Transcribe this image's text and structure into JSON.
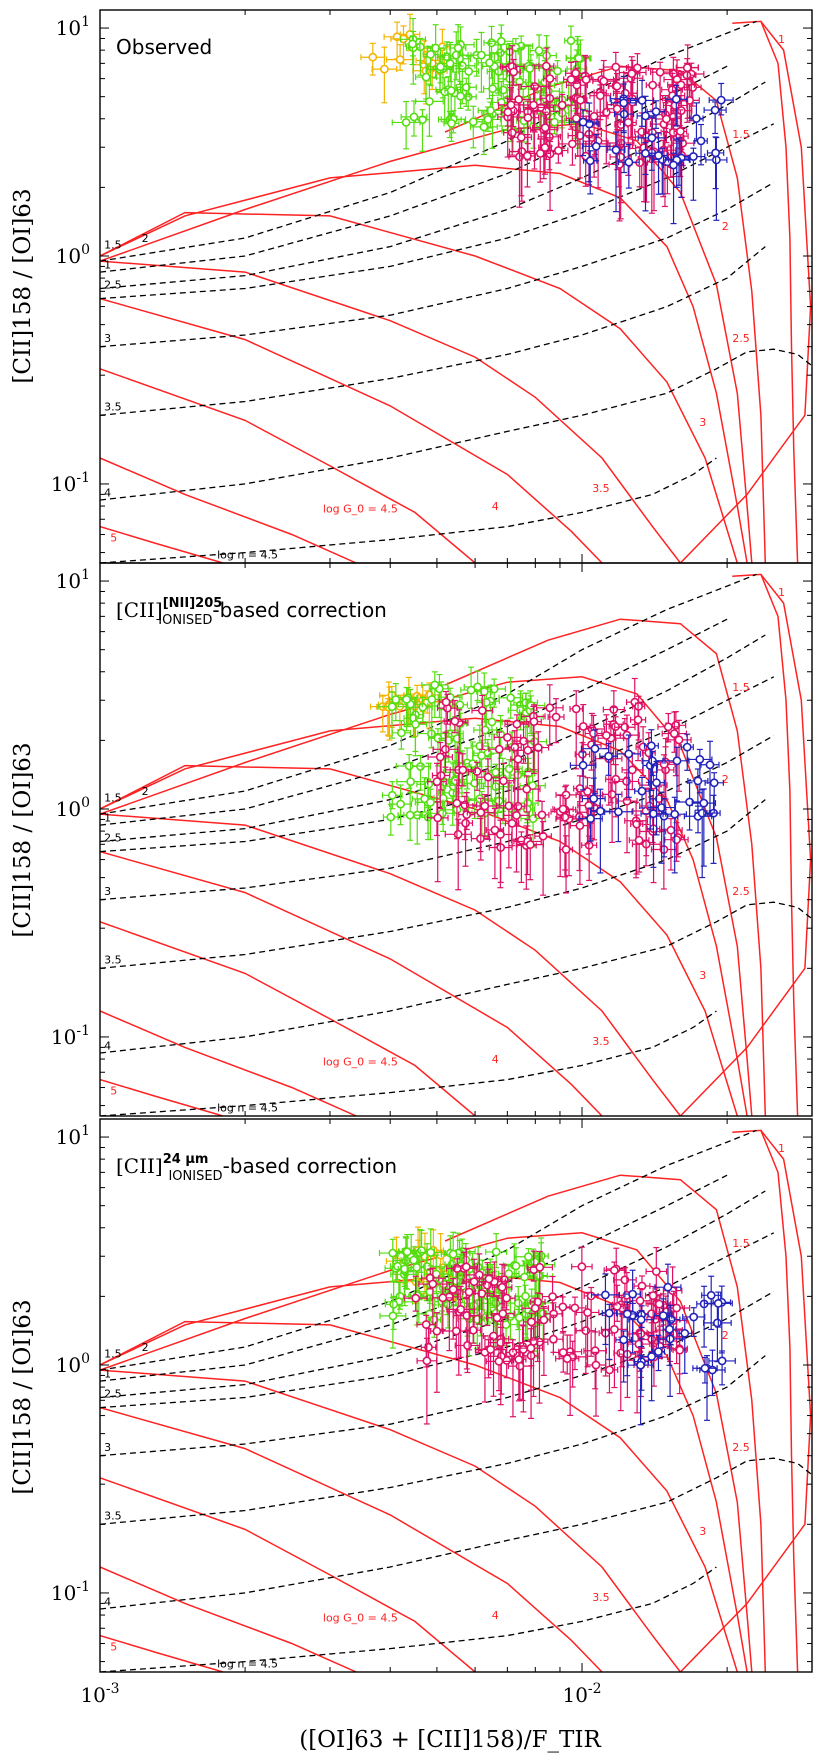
{
  "figure": {
    "xlabel": "([OI]63 + [CII]158)/F_TIR",
    "ylabel": "[CII]158 / [OI]63",
    "x_tick_labels": [
      "10^-3",
      "10^-2"
    ],
    "y_tick_labels": [
      "10^-1",
      "10^0",
      "10^1"
    ]
  },
  "colors": {
    "model_G0": "#ff2222",
    "model_n": "#000000",
    "group1": "#f4b400",
    "group2": "#55dd11",
    "group3": "#dd1166",
    "group4": "#2222bb"
  },
  "chart_data": [
    {
      "type": "scatter",
      "title": "Observed",
      "xscale": "log",
      "yscale": "log",
      "xlim": [
        0.001,
        0.03
      ],
      "ylim": [
        0.045,
        12
      ],
      "grid": false,
      "model_labels": {
        "G0": [
          "1",
          "1.5",
          "2",
          "2.5",
          "3",
          "3.5",
          "4",
          "log G_0 = 4.5",
          "5"
        ],
        "n": [
          "1.5",
          "2",
          "1",
          "2.5",
          "3",
          "3.5",
          "4",
          "log n = 4.5"
        ]
      },
      "series": [
        {
          "x_range": [
            0.0035,
            0.0055
          ],
          "y_range": [
            6.0,
            9.5
          ]
        },
        {
          "x_range": [
            0.0043,
            0.01
          ],
          "y_range": [
            3.5,
            9.0
          ]
        },
        {
          "x_range": [
            0.007,
            0.017
          ],
          "y_range": [
            2.5,
            7.0
          ]
        },
        {
          "x_range": [
            0.01,
            0.02
          ],
          "y_range": [
            2.5,
            5.0
          ]
        }
      ]
    },
    {
      "type": "scatter",
      "title_main": "[CII]",
      "title_sup": "[NII]205",
      "title_sub": "IONISED",
      "title_tail": "-based correction",
      "xscale": "log",
      "yscale": "log",
      "xlim": [
        0.001,
        0.03
      ],
      "ylim": [
        0.045,
        12
      ],
      "grid": false,
      "model_labels": {
        "G0": [
          "1",
          "1.5",
          "2",
          "2.5",
          "3",
          "3.5",
          "4",
          "log G_0 = 4.5",
          "5"
        ],
        "n": [
          "1.5",
          "2",
          "1",
          "2.5",
          "3",
          "3.5",
          "4",
          "log n = 4.5"
        ]
      },
      "series": [
        {
          "x_range": [
            0.0038,
            0.005
          ],
          "y_range": [
            2.8,
            3.2
          ]
        },
        {
          "x_range": [
            0.004,
            0.008
          ],
          "y_range": [
            0.9,
            3.6
          ]
        },
        {
          "x_range": [
            0.005,
            0.016
          ],
          "y_range": [
            0.65,
            3.0
          ]
        },
        {
          "x_range": [
            0.01,
            0.019
          ],
          "y_range": [
            0.9,
            1.9
          ]
        }
      ]
    },
    {
      "type": "scatter",
      "title_main": "[CII]",
      "title_sup": "24 μm",
      "title_sub": "IONISED",
      "title_tail": "-based correction",
      "xscale": "log",
      "yscale": "log",
      "xlim": [
        0.001,
        0.03
      ],
      "ylim": [
        0.045,
        12
      ],
      "grid": false,
      "model_labels": {
        "G0": [
          "1",
          "1.5",
          "2",
          "2.5",
          "3",
          "3.5",
          "4",
          "log G_0 = 4.5",
          "5"
        ],
        "n": [
          "1.5",
          "2",
          "1",
          "2.5",
          "3",
          "3.5",
          "4",
          "log n = 4.5"
        ]
      },
      "series": [
        {
          "x_range": [
            0.0038,
            0.0055
          ],
          "y_range": [
            2.3,
            3.2
          ]
        },
        {
          "x_range": [
            0.004,
            0.0085
          ],
          "y_range": [
            1.5,
            3.2
          ]
        },
        {
          "x_range": [
            0.0045,
            0.016
          ],
          "y_range": [
            0.95,
            2.8
          ]
        },
        {
          "x_range": [
            0.011,
            0.02
          ],
          "y_range": [
            0.9,
            2.2
          ]
        }
      ]
    }
  ]
}
